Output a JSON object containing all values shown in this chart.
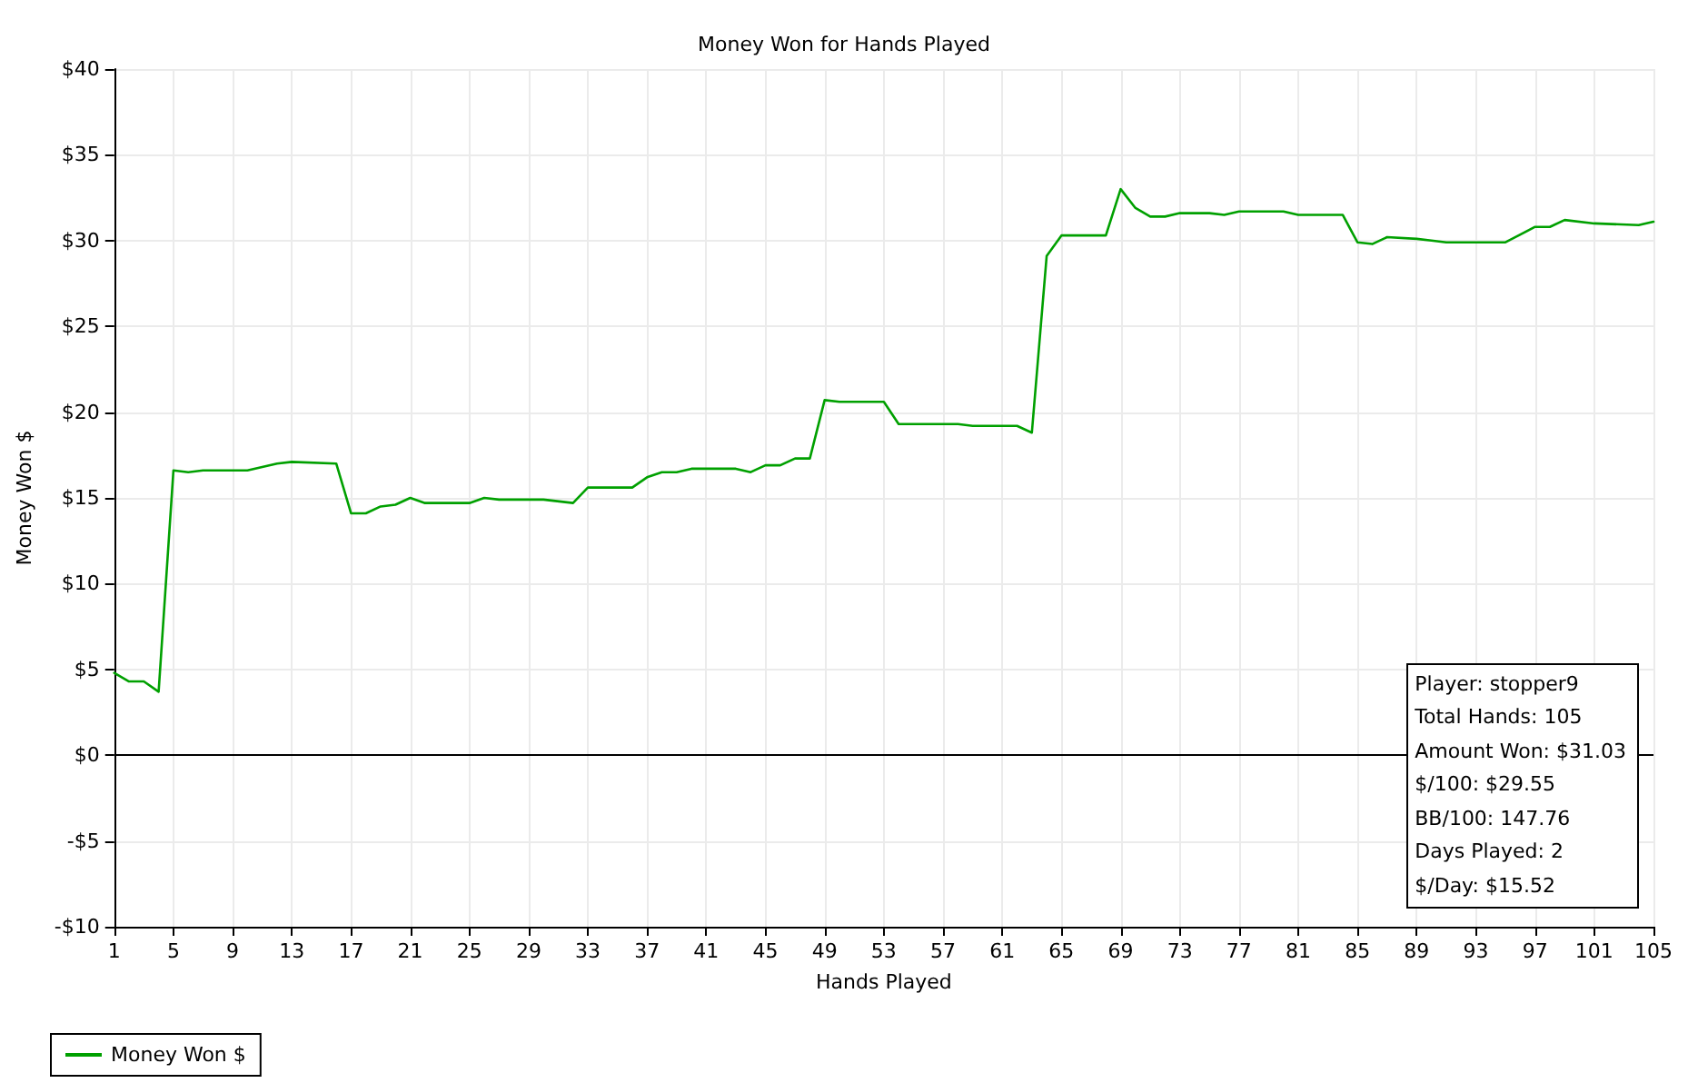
{
  "chart_data": {
    "type": "line",
    "title": "Money Won for Hands Played",
    "xlabel": "Hands Played",
    "ylabel": "Money Won $",
    "series": [
      {
        "name": "Money Won $",
        "color": "#00a000",
        "x": [
          1,
          2,
          3,
          4,
          5,
          6,
          7,
          10,
          12,
          13,
          16,
          17,
          18,
          19,
          20,
          21,
          22,
          25,
          26,
          27,
          30,
          32,
          33,
          36,
          37,
          38,
          39,
          40,
          43,
          44,
          45,
          46,
          47,
          48,
          49,
          50,
          53,
          54,
          58,
          59,
          62,
          63,
          64,
          65,
          68,
          69,
          70,
          71,
          72,
          73,
          75,
          76,
          77,
          80,
          81,
          84,
          85,
          86,
          87,
          89,
          90,
          91,
          95,
          97,
          98,
          99,
          101,
          104,
          105
        ],
        "values": [
          4.8,
          4.3,
          4.3,
          3.7,
          16.6,
          16.5,
          16.6,
          16.6,
          17.0,
          17.1,
          17.0,
          14.1,
          14.1,
          14.5,
          14.6,
          15.0,
          14.7,
          14.7,
          15.0,
          14.9,
          14.9,
          14.7,
          15.6,
          15.6,
          16.2,
          16.5,
          16.5,
          16.7,
          16.7,
          16.5,
          16.9,
          16.9,
          17.3,
          17.3,
          20.7,
          20.6,
          20.6,
          19.3,
          19.3,
          19.2,
          19.2,
          18.8,
          29.1,
          30.3,
          30.3,
          33.0,
          31.9,
          31.4,
          31.4,
          31.6,
          31.6,
          31.5,
          31.7,
          31.7,
          31.5,
          31.5,
          29.9,
          29.8,
          30.2,
          30.1,
          30.0,
          29.9,
          29.9,
          30.8,
          30.8,
          31.2,
          31.0,
          30.9,
          31.1
        ]
      }
    ],
    "xlim": [
      1,
      105
    ],
    "xticks": [
      1,
      5,
      9,
      13,
      17,
      21,
      25,
      29,
      33,
      37,
      41,
      45,
      49,
      53,
      57,
      61,
      65,
      69,
      73,
      77,
      81,
      85,
      89,
      93,
      97,
      101,
      105
    ],
    "ylim": [
      -10,
      40
    ],
    "yticks": [
      {
        "value": -10,
        "label": "-$10"
      },
      {
        "value": -5,
        "label": "-$5"
      },
      {
        "value": 0,
        "label": "$0"
      },
      {
        "value": 5,
        "label": "$5"
      },
      {
        "value": 10,
        "label": "$10"
      },
      {
        "value": 15,
        "label": "$15"
      },
      {
        "value": 20,
        "label": "$20"
      },
      {
        "value": 25,
        "label": "$25"
      },
      {
        "value": 30,
        "label": "$30"
      },
      {
        "value": 35,
        "label": "$35"
      },
      {
        "value": 40,
        "label": "$40"
      }
    ],
    "ref_lines": [
      {
        "axis": "y",
        "value": 0,
        "color": "#000000"
      }
    ],
    "annotations": [
      "Player: stopper9",
      "Total Hands: 105",
      "Amount Won: $31.03",
      "$/100: $29.55",
      "BB/100: 147.76",
      "Days Played: 2",
      "$/Day: $15.52"
    ],
    "grid": true,
    "legend": "bottom left",
    "marker": "none",
    "line_style": "solid"
  }
}
